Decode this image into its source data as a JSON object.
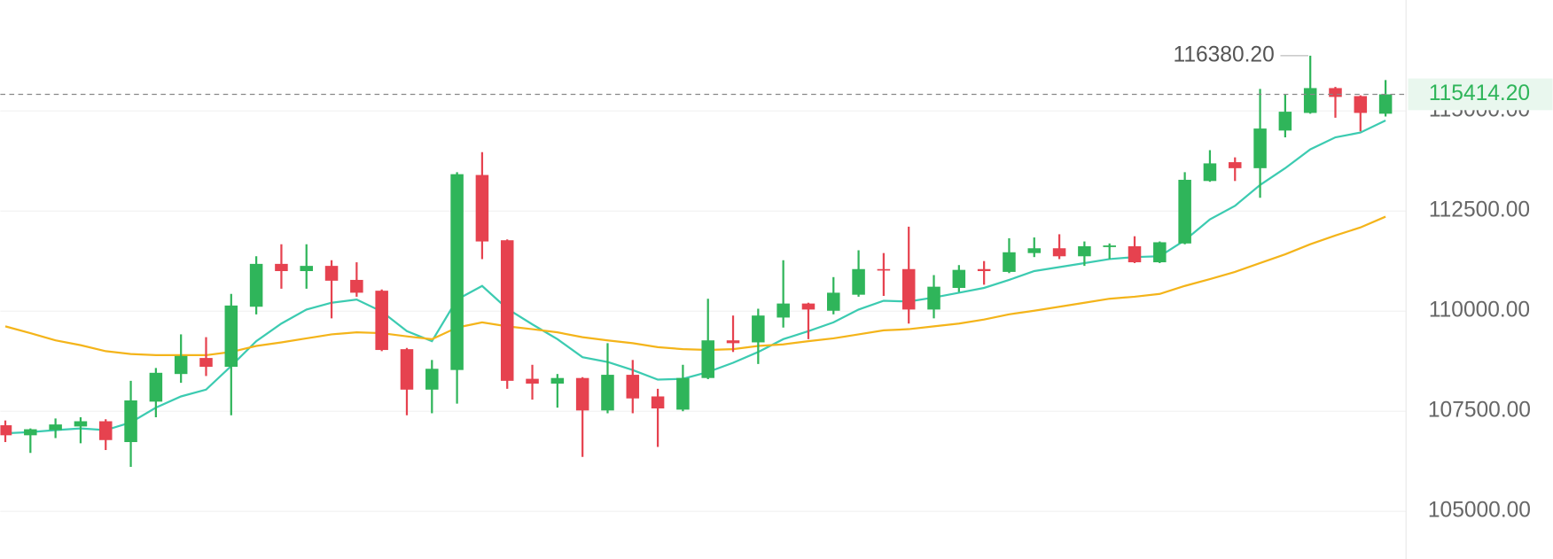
{
  "chart_data": {
    "type": "candlestick",
    "up_color": "#2fb55a",
    "down_color": "#e6424f",
    "grid": true,
    "ylim": [
      103810,
      117770
    ],
    "yticks": [
      {
        "value": 105000,
        "label": "105000.00"
      },
      {
        "value": 107500,
        "label": "107500.00"
      },
      {
        "value": 110000,
        "label": "110000.00"
      },
      {
        "value": 112500,
        "label": "112500.00"
      },
      {
        "value": 115000,
        "label": "115000.00"
      }
    ],
    "open": [
      107150,
      106900,
      107030,
      107120,
      107250,
      106730,
      107740,
      108430,
      108830,
      108610,
      110110,
      111180,
      111000,
      111130,
      110780,
      110510,
      109050,
      108040,
      108530,
      113400,
      111770,
      108310,
      108190,
      108330,
      107520,
      108410,
      107870,
      107540,
      108330,
      109270,
      109220,
      109840,
      110190,
      110010,
      110410,
      111050,
      111050,
      110040,
      110580,
      111050,
      110980,
      111450,
      111570,
      111370,
      111600,
      111620,
      111220,
      111690,
      113250,
      113720,
      113570,
      114510,
      114950,
      115570,
      115370,
      114930
    ],
    "high": [
      107270,
      107070,
      107320,
      107350,
      107300,
      108260,
      108580,
      109420,
      109350,
      110430,
      111370,
      111670,
      111670,
      111270,
      111220,
      110540,
      109080,
      108780,
      113470,
      113970,
      111790,
      108660,
      108430,
      108350,
      109200,
      108780,
      108060,
      108660,
      110310,
      109890,
      110060,
      111270,
      110210,
      110850,
      111520,
      111450,
      112110,
      110900,
      111150,
      111250,
      111820,
      111840,
      111920,
      111740,
      111690,
      111870,
      111740,
      113470,
      114020,
      113840,
      115550,
      115420,
      116380.2,
      115600,
      115390,
      115770
    ],
    "low": [
      106730,
      106460,
      106830,
      106700,
      106530,
      106110,
      107350,
      108210,
      108380,
      107400,
      109920,
      110560,
      110560,
      109820,
      110360,
      109000,
      107400,
      107450,
      107690,
      111300,
      108060,
      107790,
      107590,
      106360,
      107450,
      107450,
      106610,
      107500,
      108300,
      108980,
      108680,
      109590,
      109300,
      109920,
      110360,
      110380,
      109690,
      109820,
      110480,
      110660,
      110950,
      111350,
      111300,
      111130,
      111300,
      111200,
      111200,
      111670,
      113230,
      113250,
      112830,
      114340,
      114930,
      114830,
      114490,
      114860
    ],
    "close": [
      106900,
      107050,
      107170,
      107250,
      106780,
      107770,
      108460,
      108880,
      108610,
      110140,
      111180,
      111000,
      111130,
      110760,
      110460,
      109030,
      108040,
      108560,
      113420,
      111740,
      108260,
      108190,
      108330,
      107520,
      108410,
      107820,
      107570,
      108330,
      109270,
      109200,
      109890,
      110190,
      110040,
      110460,
      111050,
      111030,
      110040,
      110610,
      111030,
      111000,
      111470,
      111570,
      111370,
      111620,
      111640,
      111220,
      111720,
      113280,
      113690,
      113570,
      114560,
      114980,
      115570,
      115350,
      114950,
      115414.2
    ],
    "lines": [
      {
        "color": "#3ccbb1",
        "values": [
          106950,
          106980,
          107030,
          107070,
          107030,
          107220,
          107590,
          107870,
          108040,
          108630,
          109250,
          109690,
          110040,
          110210,
          110290,
          109990,
          109500,
          109250,
          110290,
          110630,
          110060,
          109670,
          109300,
          108850,
          108730,
          108530,
          108290,
          108310,
          108480,
          108710,
          108980,
          109300,
          109500,
          109720,
          110040,
          110260,
          110240,
          110340,
          110460,
          110580,
          110780,
          111000,
          111100,
          111200,
          111300,
          111350,
          111370,
          111770,
          112290,
          112630,
          113150,
          113570,
          114040,
          114340,
          114460,
          114760
        ]
      },
      {
        "color": "#f4b41a",
        "values": [
          109620,
          109450,
          109270,
          109150,
          109000,
          108930,
          108900,
          108900,
          108900,
          108980,
          109130,
          109220,
          109320,
          109420,
          109470,
          109450,
          109370,
          109300,
          109590,
          109720,
          109620,
          109550,
          109470,
          109350,
          109270,
          109200,
          109100,
          109050,
          109030,
          109050,
          109130,
          109170,
          109250,
          109320,
          109420,
          109520,
          109550,
          109620,
          109690,
          109790,
          109920,
          110010,
          110110,
          110210,
          110310,
          110360,
          110430,
          110630,
          110800,
          110980,
          111200,
          111420,
          111670,
          111890,
          112090,
          112360
        ]
      }
    ],
    "max_label": {
      "value": 116380.2,
      "label": "116380.20"
    },
    "last_price": {
      "value": 115414.2,
      "label": "115414.20"
    }
  }
}
